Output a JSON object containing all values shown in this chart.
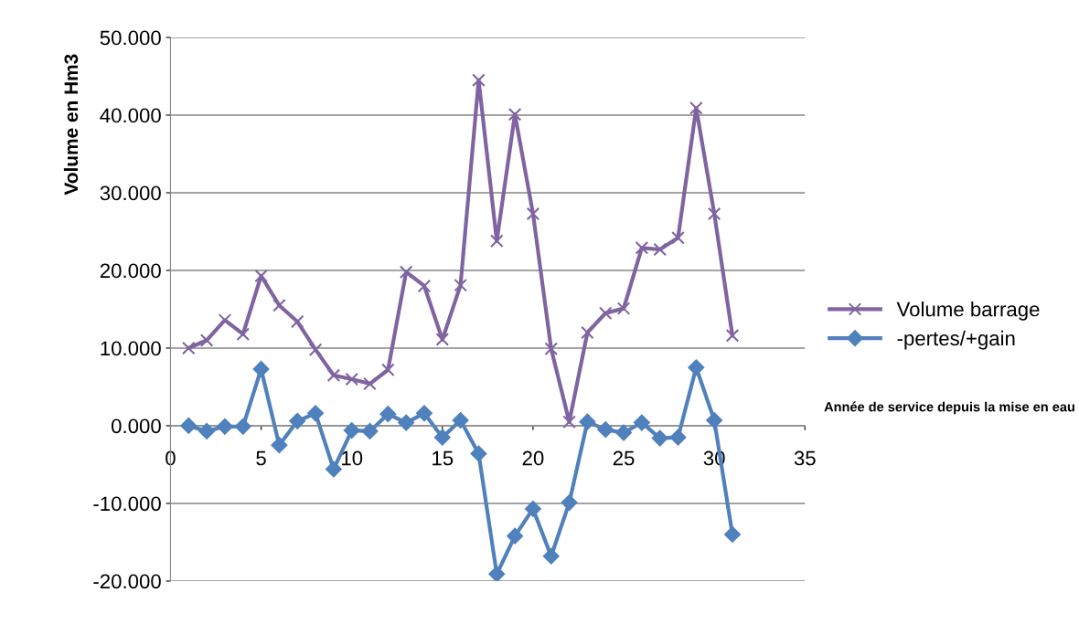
{
  "chart_data": {
    "type": "line",
    "xlabel": "Année de service depuis la mise en eau",
    "ylabel": "Volume en Hm3",
    "x": [
      1,
      2,
      3,
      4,
      5,
      6,
      7,
      8,
      9,
      10,
      11,
      12,
      13,
      14,
      15,
      16,
      17,
      18,
      19,
      20,
      21,
      22,
      23,
      24,
      25,
      26,
      27,
      28,
      29,
      30,
      31
    ],
    "series": [
      {
        "name": "Volume barrage",
        "color": "#8064a2",
        "marker": "cross",
        "values": [
          10.0,
          11.0,
          13.6,
          11.8,
          19.3,
          15.5,
          13.4,
          9.8,
          6.5,
          6.0,
          5.4,
          7.2,
          19.8,
          18.0,
          11.1,
          18.1,
          44.5,
          23.8,
          40.1,
          27.3,
          9.9,
          0.5,
          12.0,
          14.5,
          15.1,
          22.9,
          22.7,
          24.2,
          40.9,
          27.3,
          11.6
        ]
      },
      {
        "name": "-pertes/+gain",
        "color": "#4f81bd",
        "marker": "diamond",
        "values": [
          0.0,
          -0.7,
          -0.1,
          -0.1,
          7.3,
          -2.5,
          0.6,
          1.6,
          -5.6,
          -0.6,
          -0.7,
          1.5,
          0.4,
          1.6,
          -1.5,
          0.7,
          -3.6,
          -19.1,
          -14.2,
          -10.7,
          -16.8,
          -9.9,
          0.5,
          -0.5,
          -0.9,
          0.4,
          -1.6,
          -1.5,
          7.5,
          0.7,
          -14.0
        ]
      }
    ],
    "xlim": [
      0,
      35
    ],
    "xticks": [
      0,
      5,
      10,
      15,
      20,
      25,
      30,
      35
    ],
    "ylim": [
      -20,
      50
    ],
    "yticks": [
      {
        "value": -20,
        "label": "-20.000"
      },
      {
        "value": -10,
        "label": "-10.000"
      },
      {
        "value": 0,
        "label": "0.000"
      },
      {
        "value": 10,
        "label": "10.000"
      },
      {
        "value": 20,
        "label": "20.000"
      },
      {
        "value": 30,
        "label": "30.000"
      },
      {
        "value": 40,
        "label": "40.000"
      },
      {
        "value": 50,
        "label": "50.000"
      }
    ],
    "grid": "y",
    "legend": "right"
  }
}
